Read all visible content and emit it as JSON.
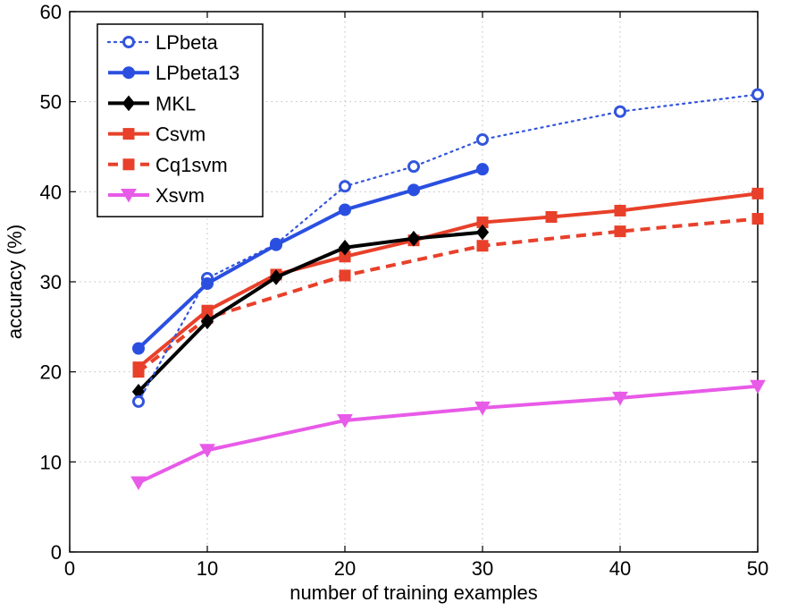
{
  "chart_data": {
    "type": "line",
    "title": "",
    "xlabel": "number of training examples",
    "ylabel": "accuracy (%)",
    "xlim": [
      0,
      50
    ],
    "ylim": [
      0,
      60
    ],
    "xticks": [
      0,
      10,
      20,
      30,
      40,
      50
    ],
    "yticks": [
      0,
      10,
      20,
      30,
      40,
      50,
      60
    ],
    "grid": true,
    "legend_position": "top-left",
    "series": [
      {
        "name": "LPbeta",
        "color": "#3355dd",
        "line_style": "dotted",
        "marker": "open-circle",
        "x": [
          5,
          10,
          15,
          20,
          25,
          30,
          40,
          50
        ],
        "y": [
          16.7,
          30.4,
          34.2,
          40.6,
          42.8,
          45.8,
          48.9,
          50.8
        ]
      },
      {
        "name": "LPbeta13",
        "color": "#2a4fe0",
        "line_style": "solid",
        "marker": "filled-circle",
        "x": [
          5,
          10,
          15,
          20,
          25,
          30
        ],
        "y": [
          22.6,
          29.8,
          34.1,
          38.0,
          40.2,
          42.5
        ]
      },
      {
        "name": "MKL",
        "color": "#000000",
        "line_style": "solid",
        "marker": "diamond",
        "x": [
          5,
          10,
          15,
          20,
          25,
          30
        ],
        "y": [
          17.8,
          25.6,
          30.5,
          33.8,
          34.8,
          35.5
        ]
      },
      {
        "name": "Csvm",
        "color": "#e8402a",
        "line_style": "solid",
        "marker": "square",
        "x": [
          5,
          10,
          15,
          20,
          25,
          30,
          35,
          40,
          50
        ],
        "y": [
          20.5,
          26.8,
          30.8,
          32.8,
          34.6,
          36.6,
          37.2,
          37.9,
          39.8
        ]
      },
      {
        "name": "Cq1svm",
        "color": "#e8402a",
        "line_style": "dashed",
        "marker": "square",
        "x": [
          5,
          10,
          20,
          30,
          40,
          50
        ],
        "y": [
          20.0,
          26.0,
          30.7,
          34.0,
          35.6,
          37.0
        ]
      },
      {
        "name": "Xsvm",
        "color": "#e85ae8",
        "line_style": "solid",
        "marker": "triangle-down",
        "x": [
          5,
          10,
          20,
          30,
          40,
          50
        ],
        "y": [
          7.7,
          11.3,
          14.6,
          16.0,
          17.1,
          18.4
        ]
      }
    ]
  }
}
